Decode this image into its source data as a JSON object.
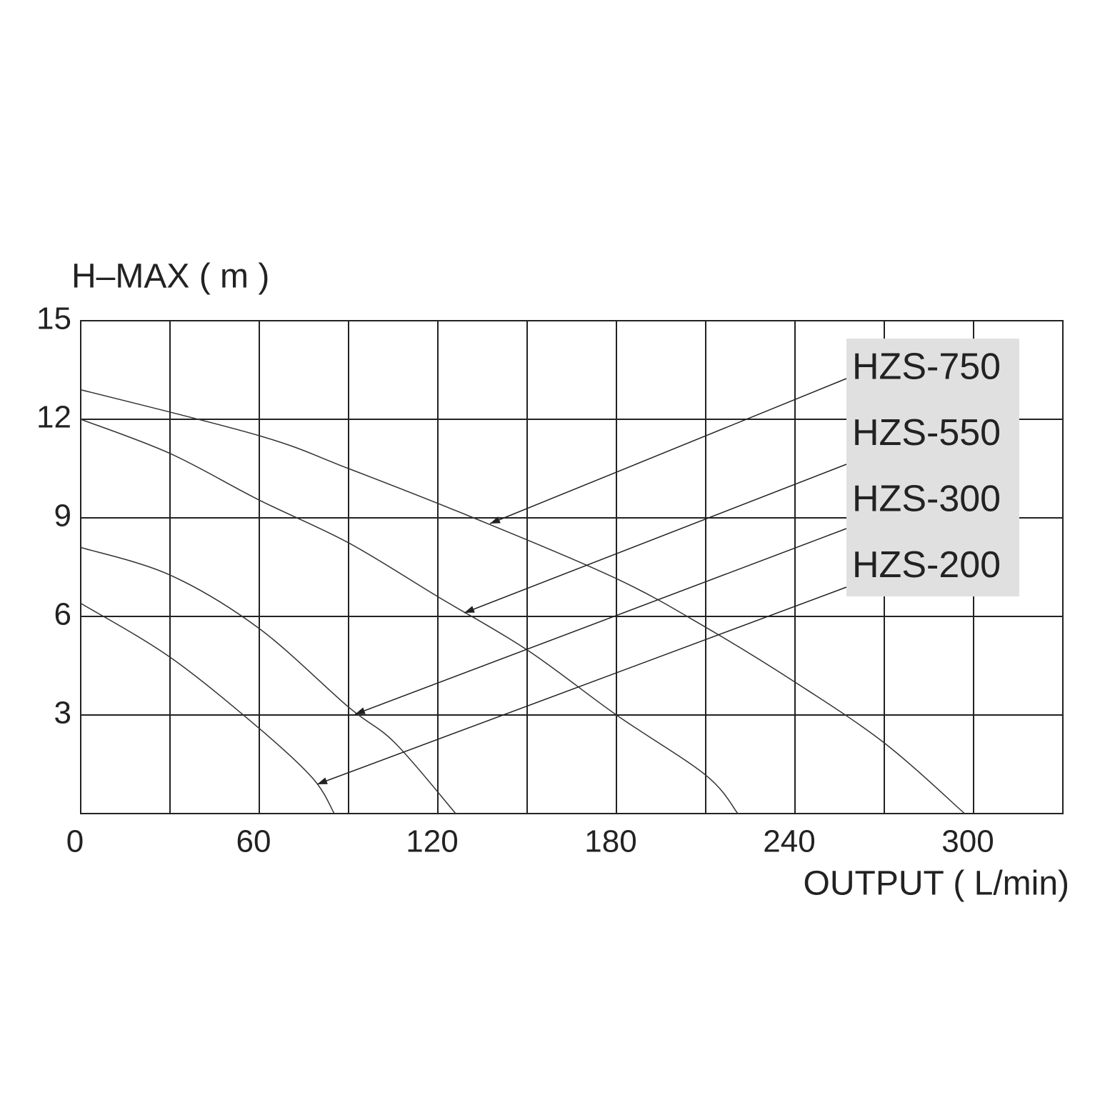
{
  "chart_data": {
    "type": "line",
    "y_label": "H–MAX ( m )",
    "x_label": "OUTPUT ( L/min)",
    "xlim": [
      0,
      330
    ],
    "xticks": [
      0,
      60,
      120,
      180,
      240,
      300
    ],
    "xminor": [
      30,
      90,
      150,
      210,
      270,
      330
    ],
    "ylim": [
      0,
      15
    ],
    "yticks": [
      3,
      6,
      9,
      12,
      15
    ],
    "grid": true,
    "legend": "upper right",
    "series": [
      {
        "name": "HZS-750",
        "color": "#333333",
        "x": [
          0,
          60,
          90,
          132,
          180,
          210,
          240,
          270,
          297
        ],
        "values": [
          12.9,
          11.5,
          10.5,
          9.0,
          7.15,
          5.67,
          4.0,
          2.15,
          0
        ]
      },
      {
        "name": "HZS-550",
        "color": "#333333",
        "x": [
          0,
          30,
          60,
          90,
          120,
          150,
          180,
          210,
          220.8
        ],
        "values": [
          12.0,
          10.96,
          9.54,
          8.24,
          6.6,
          4.98,
          3.0,
          1.17,
          0
        ]
      },
      {
        "name": "HZS-300",
        "color": "#333333",
        "x": [
          0,
          30,
          60,
          90,
          105.6,
          126
        ],
        "values": [
          8.1,
          7.26,
          5.63,
          3.24,
          2.15,
          0
        ]
      },
      {
        "name": "HZS-200",
        "color": "#333333",
        "x": [
          0,
          30,
          60,
          78,
          85.2
        ],
        "values": [
          6.4,
          4.76,
          2.59,
          1.07,
          0
        ]
      }
    ]
  }
}
